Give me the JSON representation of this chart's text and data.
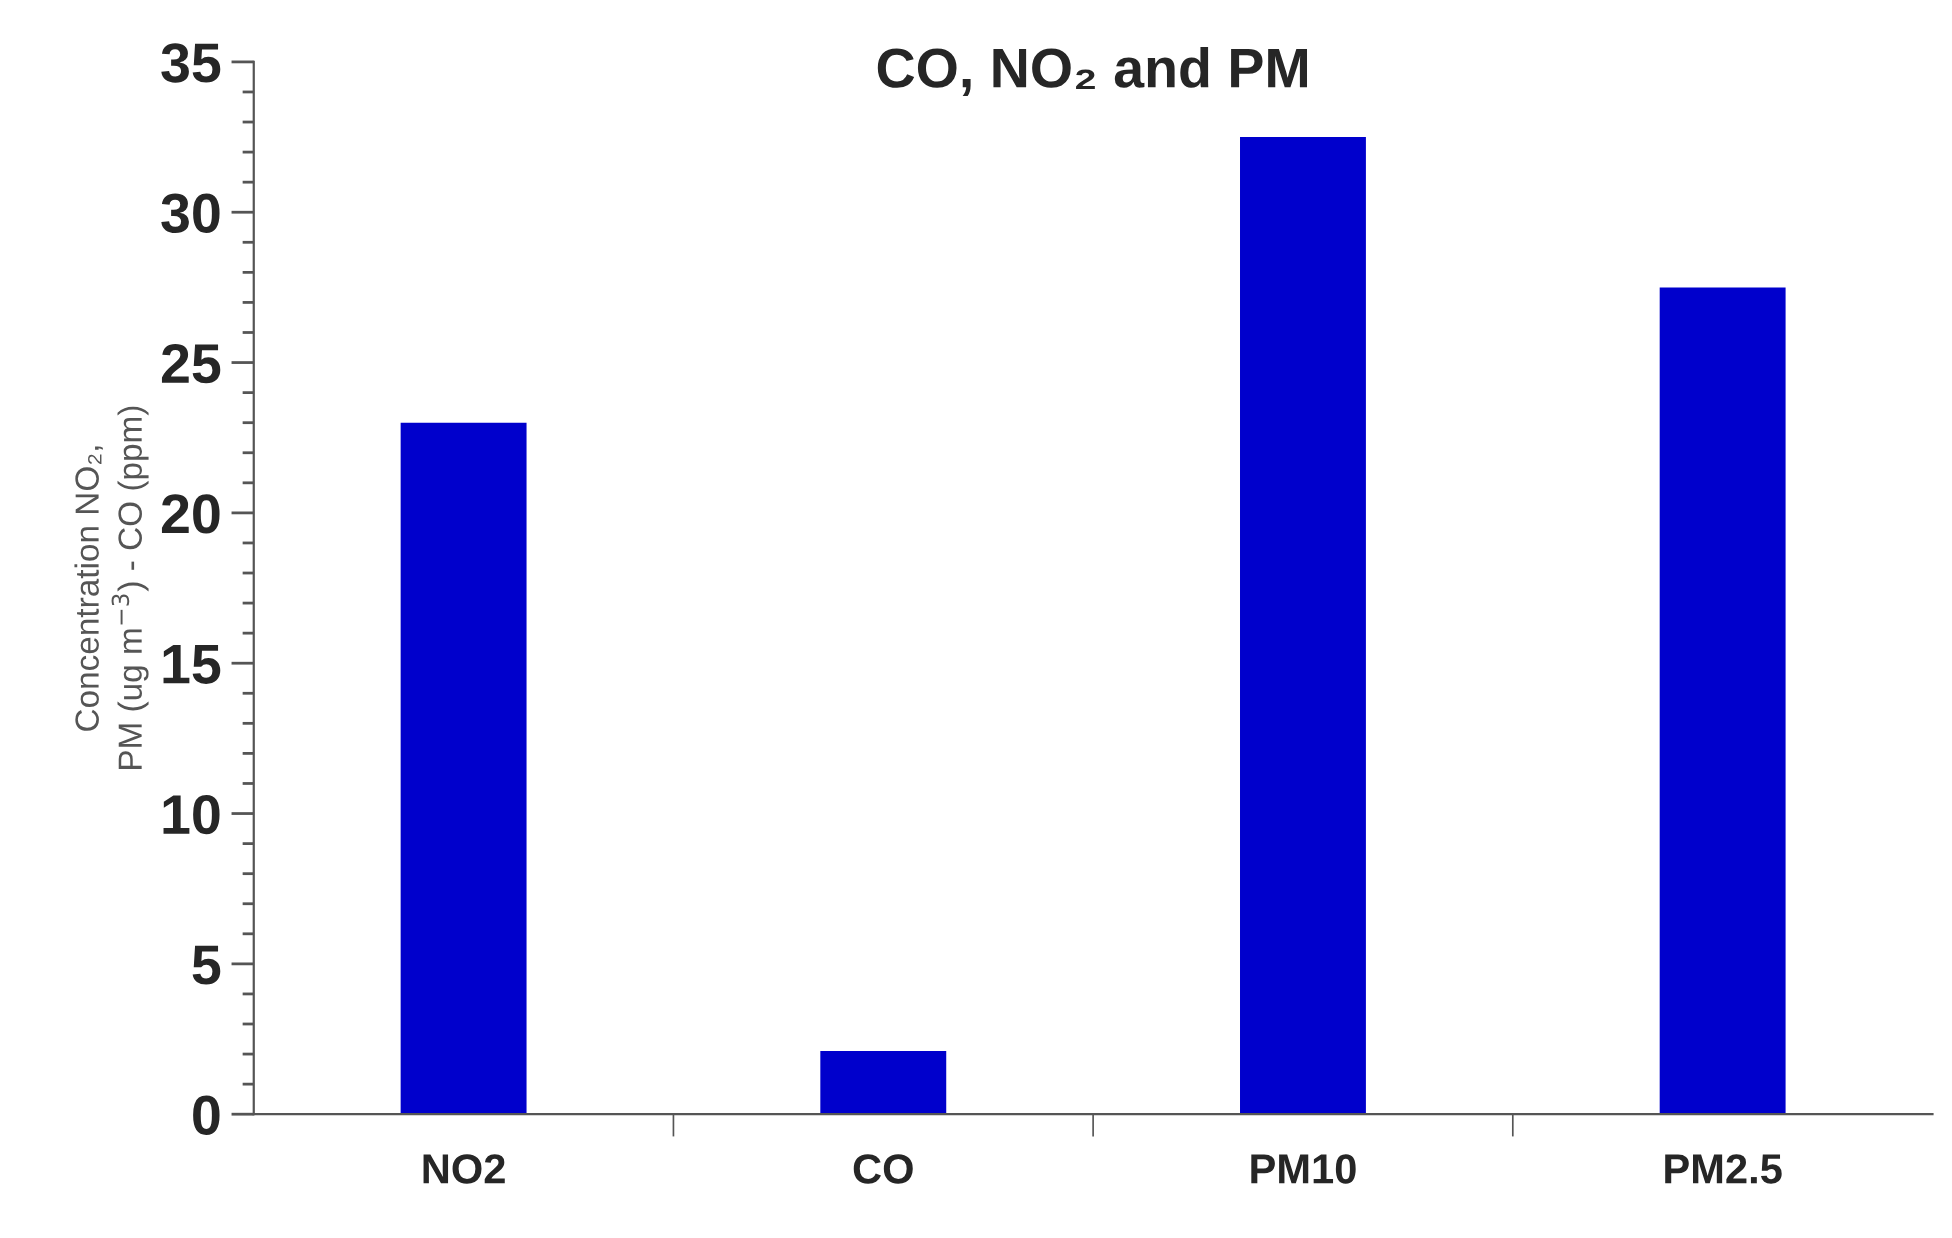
{
  "chart_data": {
    "type": "bar",
    "title": "CO, NO₂ and PM",
    "ylabel": "Concentration NO₂,\nPM (ug m$^{−3}$) - CO (ppm)",
    "categories": [
      "NO2",
      "CO",
      "PM10",
      "PM2.5"
    ],
    "values": [
      23,
      2.1,
      32.5,
      27.5
    ],
    "color": "#0000cc",
    "ylim": [
      0,
      35
    ],
    "yticks": [
      0,
      5,
      10,
      15,
      20,
      25,
      30,
      35
    ],
    "grid": false
  }
}
